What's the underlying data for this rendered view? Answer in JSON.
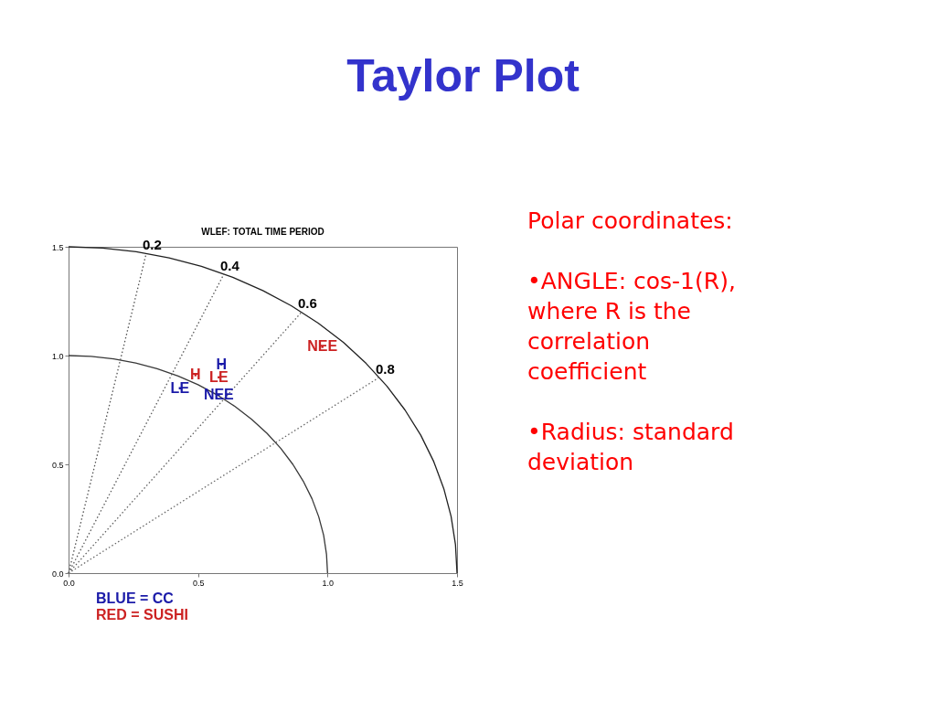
{
  "chart_data": {
    "type": "scatter",
    "title": "Taylor Plot",
    "subtitle": "WLEF: TOTAL TIME PERIOD",
    "xlim": [
      0,
      1.5
    ],
    "ylim": [
      0,
      1.5
    ],
    "xticks": [
      {
        "value": 0,
        "label": "0.0"
      },
      {
        "value": 0.5,
        "label": "0.5"
      },
      {
        "value": 1,
        "label": "1.0"
      },
      {
        "value": 1.5,
        "label": "1.5"
      }
    ],
    "yticks": [
      {
        "value": 0,
        "label": "0.0"
      },
      {
        "value": 0.5,
        "label": "0.5"
      },
      {
        "value": 1,
        "label": "1.0"
      },
      {
        "value": 1.5,
        "label": "1.5"
      }
    ],
    "grid": false,
    "series": [
      {
        "type": "line",
        "color": "#202020",
        "line_style": "solid",
        "x": [
          0,
          0.131,
          0.261,
          0.388,
          0.513,
          0.634,
          0.75,
          0.86,
          0.964,
          1.061,
          1.149,
          1.229,
          1.299,
          1.36,
          1.41,
          1.449,
          1.477,
          1.494,
          1.5
        ],
        "values": [
          1.5,
          1.494,
          1.477,
          1.449,
          1.41,
          1.36,
          1.299,
          1.229,
          1.149,
          1.061,
          0.964,
          0.86,
          0.75,
          0.634,
          0.513,
          0.388,
          0.261,
          0.131,
          0
        ]
      },
      {
        "type": "line",
        "color": "#383838",
        "line_style": "solid",
        "x": [
          0,
          0.087,
          0.174,
          0.259,
          0.342,
          0.423,
          0.5,
          0.574,
          0.643,
          0.707,
          0.766,
          0.819,
          0.866,
          0.906,
          0.94,
          0.966,
          0.985,
          0.996,
          1.0
        ],
        "values": [
          1.0,
          0.996,
          0.985,
          0.966,
          0.94,
          0.906,
          0.866,
          0.819,
          0.766,
          0.707,
          0.643,
          0.574,
          0.5,
          0.423,
          0.342,
          0.259,
          0.174,
          0.087,
          0
        ]
      },
      {
        "type": "line",
        "color": "#505050",
        "line_style": "dotted",
        "x": [
          0,
          0.3
        ],
        "values": [
          0,
          1.47
        ]
      },
      {
        "type": "line",
        "color": "#585858",
        "line_style": "dotted",
        "x": [
          0,
          0.6
        ],
        "values": [
          0,
          1.375
        ]
      },
      {
        "type": "line",
        "color": "#606060",
        "line_style": "dotted",
        "x": [
          0,
          0.9
        ],
        "values": [
          0,
          1.2
        ]
      },
      {
        "type": "line",
        "color": "#686868",
        "line_style": "dotted",
        "x": [
          0,
          1.2
        ],
        "values": [
          0,
          0.9
        ]
      },
      {
        "name": "BLUE = CC",
        "color": "#1a1aa8",
        "x": [
          0.59,
          0.43,
          0.58
        ],
        "values": [
          0.96,
          0.85,
          0.82
        ],
        "value_labels": [
          "H",
          "LE",
          "NEE"
        ]
      },
      {
        "name": "RED = SUSHI",
        "color": "#cc2222",
        "x": [
          0.49,
          0.58,
          0.98
        ],
        "values": [
          0.91,
          0.9,
          1.04
        ],
        "value_labels": [
          "H",
          "LE",
          "NEE"
        ]
      }
    ],
    "annotations": [
      {
        "text": "0.2",
        "x": 0.3,
        "y": 1.47
      },
      {
        "text": "0.4",
        "x": 0.6,
        "y": 1.375
      },
      {
        "text": "0.6",
        "x": 0.9,
        "y": 1.2
      },
      {
        "text": "0.8",
        "x": 1.2,
        "y": 0.9
      },
      "Polar coordinates:",
      "•ANGLE: cos-1(R), where R is the correlation coefficient",
      "•Radius: standard deviation"
    ]
  }
}
